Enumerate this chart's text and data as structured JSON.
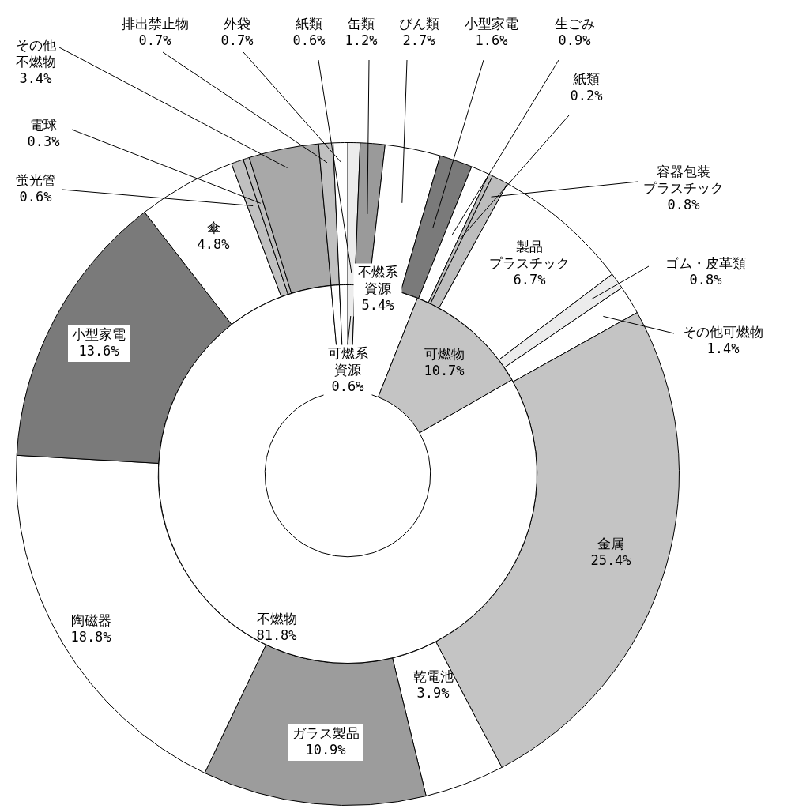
{
  "chart_data": [
    {
      "type": "donut",
      "categories": [
        "紙類",
        "缶類",
        "びん類",
        "小型家電",
        "生ごみ",
        "紙類",
        "容器包装プラスチック",
        "製品プラスチック",
        "ゴム・皮革類",
        "その他可燃物",
        "金属",
        "乾電池",
        "ガラス製品",
        "陶磁器",
        "小型家電",
        "傘",
        "蛍光管",
        "電球",
        "その他不燃物",
        "排出禁止物",
        "外袋"
      ],
      "values": [
        0.6,
        1.2,
        2.7,
        1.6,
        0.9,
        0.2,
        0.8,
        6.7,
        0.8,
        1.4,
        25.4,
        3.9,
        10.9,
        18.8,
        13.6,
        4.8,
        0.6,
        0.3,
        3.4,
        0.7,
        0.7
      ],
      "value_labels": [
        "0.6%",
        "1.2%",
        "2.7%",
        "1.6%",
        "0.9%",
        "0.2%",
        "0.8%",
        "6.7%",
        "0.8%",
        "1.4%",
        "25.4%",
        "3.9%",
        "10.9%",
        "18.8%",
        "13.6%",
        "4.8%",
        "0.6%",
        "0.3%",
        "3.4%",
        "0.7%",
        "0.7%"
      ],
      "colors": [
        "#ececec",
        "#9a9a9a",
        "#ffffff",
        "#7a7a7a",
        "#ffffff",
        "#bdbdbd",
        "#bdbdbd",
        "#ffffff",
        "#ececec",
        "#ffffff",
        "#c4c4c4",
        "#ffffff",
        "#9c9c9c",
        "#ffffff",
        "#7a7a7a",
        "#ffffff",
        "#c0c0c0",
        "#bdbdbd",
        "#a8a8a8",
        "#c0c0c0",
        "#ffffff"
      ]
    },
    {
      "type": "donut",
      "categories": [
        "可燃系資源",
        "不燃系資源",
        "可燃物",
        "不燃物",
        null,
        null
      ],
      "values": [
        0.6,
        5.4,
        10.7,
        81.8,
        0.7,
        0.7
      ],
      "value_labels": [
        "0.6%",
        "5.4%",
        "10.7%",
        "81.8%",
        null,
        null
      ],
      "colors": [
        "#ececec",
        "#ffffff",
        "#c4c4c4",
        "#ffffff",
        "#ffffff",
        "#ffffff"
      ]
    }
  ]
}
